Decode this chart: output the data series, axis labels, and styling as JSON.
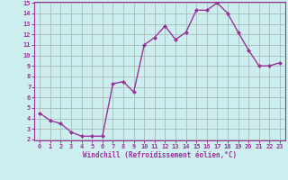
{
  "x": [
    0,
    1,
    2,
    3,
    4,
    5,
    6,
    7,
    8,
    9,
    10,
    11,
    12,
    13,
    14,
    15,
    16,
    17,
    18,
    19,
    20,
    21,
    22,
    23
  ],
  "y": [
    4.5,
    3.8,
    3.5,
    2.7,
    2.3,
    2.3,
    2.3,
    7.3,
    7.5,
    6.5,
    11.0,
    11.7,
    12.8,
    11.5,
    12.2,
    14.3,
    14.3,
    15.0,
    14.0,
    12.2,
    10.5,
    9.0,
    9.0,
    9.3
  ],
  "line_color": "#993399",
  "marker": "D",
  "marker_size": 2.0,
  "bg_color": "#cceeee",
  "grid_color": "#aabbbb",
  "xlabel": "Windchill (Refroidissement éolien,°C)",
  "xlabel_color": "#993399",
  "tick_color": "#993399",
  "ylim": [
    2,
    15
  ],
  "xlim": [
    -0.5,
    23.5
  ],
  "yticks": [
    2,
    3,
    4,
    5,
    6,
    7,
    8,
    9,
    10,
    11,
    12,
    13,
    14,
    15
  ],
  "xticks": [
    0,
    1,
    2,
    3,
    4,
    5,
    6,
    7,
    8,
    9,
    10,
    11,
    12,
    13,
    14,
    15,
    16,
    17,
    18,
    19,
    20,
    21,
    22,
    23
  ],
  "line_width": 1.0
}
